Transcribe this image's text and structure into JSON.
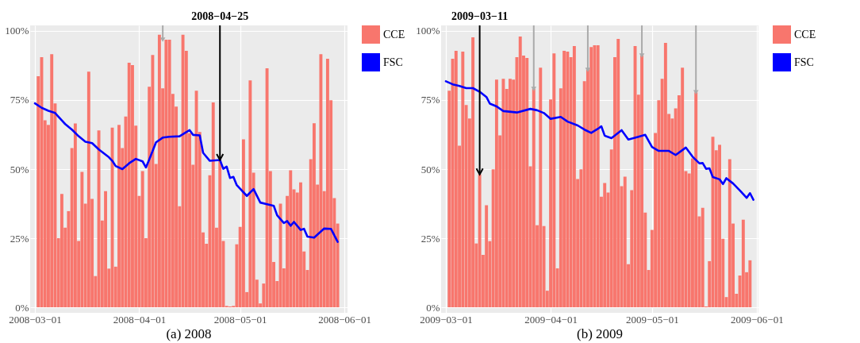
{
  "chart_data": [
    {
      "type": "bar",
      "title": "(a) 2008",
      "legend": "right",
      "grid": true,
      "xlim": [
        "2008-02-28T14:00",
        "2008-06-01T22:00"
      ],
      "xticks": [
        {
          "value": "2008-03-01",
          "label": "2008−03−01"
        },
        {
          "value": "2008-04-01",
          "label": "2008−04−01"
        },
        {
          "value": "2008-05-01",
          "label": "2008−05−01"
        },
        {
          "value": "2008-06-01",
          "label": "2008−06−01"
        }
      ],
      "ylim": [
        -0.02,
        1.02
      ],
      "yticks": [
        {
          "value": 0,
          "label": "0%"
        },
        {
          "value": 0.25,
          "label": "25%"
        },
        {
          "value": 0.5,
          "label": "50%"
        },
        {
          "value": 0.75,
          "label": "75%"
        },
        {
          "value": 1,
          "label": "100%"
        }
      ],
      "annotations": [
        {
          "text": "2008−04−25",
          "x": "2008-04-25",
          "y": 0.533
        }
      ],
      "series": [
        {
          "name": "CCE",
          "color": "#f8766d",
          "x": [
            "2008-03-02",
            "2008-03-03",
            "2008-03-04",
            "2008-03-05",
            "2008-03-06",
            "2008-03-07",
            "2008-03-08",
            "2008-03-09",
            "2008-03-10",
            "2008-03-11",
            "2008-03-12",
            "2008-03-13",
            "2008-03-14",
            "2008-03-15",
            "2008-03-16",
            "2008-03-17",
            "2008-03-18",
            "2008-03-19",
            "2008-03-20",
            "2008-03-21",
            "2008-03-22",
            "2008-03-23",
            "2008-03-24",
            "2008-03-25",
            "2008-03-26",
            "2008-03-27",
            "2008-03-28",
            "2008-03-29",
            "2008-03-30",
            "2008-03-31",
            "2008-04-01",
            "2008-04-02",
            "2008-04-03",
            "2008-04-04",
            "2008-04-05",
            "2008-04-06",
            "2008-04-07",
            "2008-04-08",
            "2008-04-09",
            "2008-04-10",
            "2008-04-11",
            "2008-04-12",
            "2008-04-13",
            "2008-04-14",
            "2008-04-15",
            "2008-04-16",
            "2008-04-17",
            "2008-04-18",
            "2008-04-19",
            "2008-04-20",
            "2008-04-21",
            "2008-04-22",
            "2008-04-23",
            "2008-04-24",
            "2008-04-25",
            "2008-04-26",
            "2008-04-27",
            "2008-04-28",
            "2008-04-29",
            "2008-04-30",
            "2008-05-01",
            "2008-05-02",
            "2008-05-03",
            "2008-05-04",
            "2008-05-05",
            "2008-05-06",
            "2008-05-07",
            "2008-05-08",
            "2008-05-09",
            "2008-05-10",
            "2008-05-11",
            "2008-05-12",
            "2008-05-13",
            "2008-05-14",
            "2008-05-15",
            "2008-05-16",
            "2008-05-17",
            "2008-05-18",
            "2008-05-19",
            "2008-05-20",
            "2008-05-21",
            "2008-05-22",
            "2008-05-23",
            "2008-05-24",
            "2008-05-25",
            "2008-05-26",
            "2008-05-27",
            "2008-05-28",
            "2008-05-29",
            "2008-05-30"
          ],
          "values": [
            0.836,
            0.905,
            0.677,
            0.66,
            0.916,
            0.738,
            0.25,
            0.41,
            0.288,
            0.348,
            0.576,
            0.665,
            0.24,
            0.49,
            0.375,
            0.853,
            0.392,
            0.113,
            0.64,
            0.314,
            0.42,
            0.14,
            0.65,
            0.147,
            0.66,
            0.576,
            0.69,
            0.885,
            0.876,
            0.657,
            0.403,
            0.493,
            0.25,
            0.798,
            0.913,
            0.519,
            0.986,
            0.792,
            0.968,
            0.968,
            0.772,
            0.726,
            0.366,
            0.986,
            0.928,
            0.63,
            0.516,
            0.784,
            0.634,
            0.271,
            0.23,
            0.478,
            0.741,
            0.288,
            0.533,
            0.24,
            0.005,
            0.003,
            0.005,
            0.228,
            0.291,
            0.608,
            0.055,
            0.821,
            0.487,
            0.1,
            0.014,
            0.086,
            0.865,
            0.493,
            0.164,
            0.095,
            0.375,
            0.141,
            0.403,
            0.496,
            0.427,
            0.415,
            0.452,
            0.202,
            0.135,
            0.536,
            0.666,
            0.444,
            0.916,
            0.42,
            0.899,
            0.749,
            0.395,
            0.303
          ]
        },
        {
          "name": "FSC",
          "type": "line",
          "color": "#0000ff",
          "x": [
            "2008-03-01",
            "2008-03-03",
            "2008-03-05",
            "2008-03-07",
            "2008-03-09",
            "2008-03-10",
            "2008-03-12",
            "2008-03-14",
            "2008-03-16",
            "2008-03-18",
            "2008-03-20",
            "2008-03-23",
            "2008-03-24",
            "2008-03-25",
            "2008-03-27",
            "2008-03-29",
            "2008-03-31",
            "2008-04-02",
            "2008-04-03",
            "2008-04-04",
            "2008-04-06",
            "2008-04-08",
            "2008-04-10",
            "2008-04-13",
            "2008-04-15",
            "2008-04-16",
            "2008-04-17",
            "2008-04-19",
            "2008-04-20",
            "2008-04-22",
            "2008-04-25",
            "2008-04-26",
            "2008-04-27",
            "2008-04-28",
            "2008-04-29",
            "2008-04-30",
            "2008-05-03",
            "2008-05-05",
            "2008-05-07",
            "2008-05-11",
            "2008-05-12",
            "2008-05-14",
            "2008-05-15",
            "2008-05-16",
            "2008-05-17",
            "2008-05-19",
            "2008-05-20",
            "2008-05-21",
            "2008-05-23",
            "2008-05-26",
            "2008-05-28",
            "2008-05-30"
          ],
          "values": [
            0.738,
            0.722,
            0.711,
            0.703,
            0.676,
            0.663,
            0.643,
            0.619,
            0.599,
            0.594,
            0.571,
            0.543,
            0.53,
            0.511,
            0.5,
            0.521,
            0.537,
            0.528,
            0.506,
            0.535,
            0.597,
            0.614,
            0.617,
            0.619,
            0.634,
            0.641,
            0.624,
            0.622,
            0.559,
            0.53,
            0.533,
            0.501,
            0.509,
            0.468,
            0.472,
            0.442,
            0.403,
            0.428,
            0.379,
            0.367,
            0.333,
            0.305,
            0.312,
            0.295,
            0.309,
            0.28,
            0.284,
            0.256,
            0.252,
            0.285,
            0.284,
            0.237
          ]
        },
        {
          "type": "scatter",
          "color": "#aaaaaa",
          "marker": "triangle",
          "x": [
            "2008-04-08"
          ],
          "values": [
            0.968
          ],
          "errors": [
            [
              0.968,
              1.02
            ]
          ]
        }
      ]
    },
    {
      "type": "bar",
      "title": "(b) 2009",
      "legend": "right",
      "grid": true,
      "xlim": [
        "2009-02-27T14:00",
        "2009-06-01T12:00"
      ],
      "xticks": [
        {
          "value": "2009-03-01",
          "label": "2009−03−01"
        },
        {
          "value": "2009-04-01",
          "label": "2009−04−01"
        },
        {
          "value": "2009-05-01",
          "label": "2009−05−01"
        },
        {
          "value": "2009-06-01",
          "label": "2009−06−01"
        }
      ],
      "ylim": [
        -0.02,
        1.02
      ],
      "yticks": [
        {
          "value": 0,
          "label": "0%"
        },
        {
          "value": 0.25,
          "label": "25%"
        },
        {
          "value": 0.5,
          "label": "50%"
        },
        {
          "value": 0.75,
          "label": "75%"
        },
        {
          "value": 1,
          "label": "100%"
        }
      ],
      "annotations": [
        {
          "text": "2009−03−11",
          "x": "2009-03-11",
          "y": 0.481
        }
      ],
      "series": [
        {
          "name": "CCE",
          "color": "#f8766d",
          "x": [
            "2009-03-02",
            "2009-03-03",
            "2009-03-04",
            "2009-03-05",
            "2009-03-06",
            "2009-03-07",
            "2009-03-08",
            "2009-03-09",
            "2009-03-10",
            "2009-03-11",
            "2009-03-12",
            "2009-03-13",
            "2009-03-14",
            "2009-03-15",
            "2009-03-16",
            "2009-03-17",
            "2009-03-18",
            "2009-03-19",
            "2009-03-20",
            "2009-03-21",
            "2009-03-22",
            "2009-03-23",
            "2009-03-24",
            "2009-03-25",
            "2009-03-26",
            "2009-03-27",
            "2009-03-28",
            "2009-03-29",
            "2009-03-30",
            "2009-03-31",
            "2009-04-01",
            "2009-04-02",
            "2009-04-03",
            "2009-04-04",
            "2009-04-05",
            "2009-04-06",
            "2009-04-07",
            "2009-04-08",
            "2009-04-09",
            "2009-04-10",
            "2009-04-11",
            "2009-04-12",
            "2009-04-13",
            "2009-04-14",
            "2009-04-15",
            "2009-04-16",
            "2009-04-17",
            "2009-04-18",
            "2009-04-19",
            "2009-04-20",
            "2009-04-21",
            "2009-04-22",
            "2009-04-23",
            "2009-04-24",
            "2009-04-25",
            "2009-04-26",
            "2009-04-27",
            "2009-04-28",
            "2009-04-29",
            "2009-04-30",
            "2009-05-01",
            "2009-05-02",
            "2009-05-03",
            "2009-05-04",
            "2009-05-05",
            "2009-05-06",
            "2009-05-07",
            "2009-05-08",
            "2009-05-09",
            "2009-05-10",
            "2009-05-11",
            "2009-05-12",
            "2009-05-13",
            "2009-05-14",
            "2009-05-15",
            "2009-05-16",
            "2009-05-17",
            "2009-05-18",
            "2009-05-19",
            "2009-05-20",
            "2009-05-21",
            "2009-05-22",
            "2009-05-23",
            "2009-05-24",
            "2009-05-25",
            "2009-05-26",
            "2009-05-27",
            "2009-05-28",
            "2009-05-29",
            "2009-05-30"
          ],
          "values": [
            0.784,
            0.899,
            0.928,
            0.585,
            0.925,
            0.732,
            0.683,
            0.977,
            0.231,
            0.481,
            0.19,
            0.369,
            0.239,
            0.499,
            0.824,
            0.622,
            0.827,
            0.79,
            0.827,
            0.824,
            0.905,
            0.98,
            0.911,
            0.902,
            0.51,
            0.79,
            0.297,
            0.867,
            0.294,
            0.06,
            0.752,
            0.919,
            0.141,
            0.792,
            0.928,
            0.925,
            0.905,
            0.945,
            0.464,
            0.499,
            0.818,
            0.859,
            0.942,
            0.948,
            0.948,
            0.4,
            0.45,
            0.415,
            0.571,
            0.905,
            0.971,
            0.438,
            0.473,
            0.156,
            0.424,
            0.945,
            0.769,
            0.911,
            0.343,
            0.135,
            0.28,
            0.631,
            0.749,
            0.827,
            0.957,
            0.7,
            0.683,
            0.72,
            0.767,
            0.867,
            0.493,
            0.484,
            0.539,
            0.778,
            0.329,
            0.36,
            0.003,
            0.167,
            0.617,
            0.568,
            0.588,
            0.248,
            0.037,
            0.536,
            0.303,
            0.049,
            0.115,
            0.317,
            0.127,
            0.17
          ]
        },
        {
          "name": "FSC",
          "type": "line",
          "color": "#0000ff",
          "x": [
            "2009-03-01",
            "2009-03-03",
            "2009-03-05",
            "2009-03-07",
            "2009-03-09",
            "2009-03-11",
            "2009-03-13",
            "2009-03-14",
            "2009-03-16",
            "2009-03-18",
            "2009-03-22",
            "2009-03-26",
            "2009-03-28",
            "2009-03-30",
            "2009-04-01",
            "2009-04-04",
            "2009-04-06",
            "2009-04-09",
            "2009-04-11",
            "2009-04-13",
            "2009-04-15",
            "2009-04-16",
            "2009-04-17",
            "2009-04-19",
            "2009-04-22",
            "2009-04-24",
            "2009-04-27",
            "2009-04-29",
            "2009-05-01",
            "2009-05-03",
            "2009-05-06",
            "2009-05-08",
            "2009-05-11",
            "2009-05-13",
            "2009-05-15",
            "2009-05-16",
            "2009-05-17",
            "2009-05-18",
            "2009-05-19",
            "2009-05-21",
            "2009-05-22",
            "2009-05-23",
            "2009-05-25",
            "2009-05-27",
            "2009-05-29",
            "2009-05-30",
            "2009-05-31"
          ],
          "values": [
            0.818,
            0.807,
            0.801,
            0.793,
            0.793,
            0.78,
            0.761,
            0.737,
            0.727,
            0.71,
            0.705,
            0.718,
            0.713,
            0.703,
            0.682,
            0.689,
            0.672,
            0.658,
            0.643,
            0.631,
            0.646,
            0.655,
            0.621,
            0.612,
            0.641,
            0.607,
            0.617,
            0.624,
            0.58,
            0.566,
            0.566,
            0.551,
            0.578,
            0.545,
            0.521,
            0.522,
            0.501,
            0.503,
            0.471,
            0.463,
            0.446,
            0.467,
            0.448,
            0.423,
            0.396,
            0.413,
            0.389
          ]
        },
        {
          "type": "scatter",
          "color": "#aaaaaa",
          "marker": "triangle",
          "x": [
            "2009-03-27",
            "2009-04-12",
            "2009-04-28",
            "2009-05-14"
          ],
          "values": [
            0.79,
            0.859,
            0.911,
            0.778
          ],
          "errors": [
            [
              0.79,
              1.02
            ],
            [
              0.859,
              1.02
            ],
            [
              0.911,
              1.02
            ],
            [
              0.778,
              1.02
            ]
          ]
        }
      ]
    }
  ]
}
